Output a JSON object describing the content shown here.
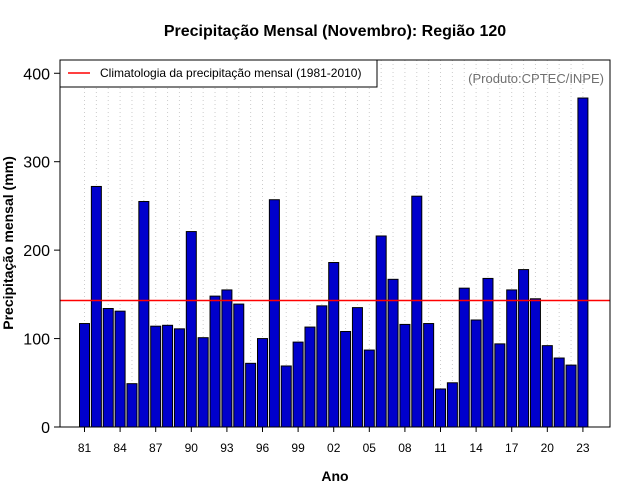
{
  "chart_data": {
    "type": "bar",
    "title": "Precipitação Mensal (Novembro): Região 120",
    "xlabel": "Ano",
    "ylabel": "Precipitação mensal (mm)",
    "ylim": [
      0,
      415
    ],
    "yticks": [
      0,
      100,
      200,
      300,
      400
    ],
    "xtick_labels": [
      "81",
      "84",
      "87",
      "90",
      "93",
      "96",
      "99",
      "02",
      "05",
      "08",
      "11",
      "14",
      "17",
      "20",
      "23"
    ],
    "categories": [
      "1981",
      "1982",
      "1983",
      "1984",
      "1985",
      "1986",
      "1987",
      "1988",
      "1989",
      "1990",
      "1991",
      "1992",
      "1993",
      "1994",
      "1995",
      "1996",
      "1997",
      "1998",
      "1999",
      "2000",
      "2001",
      "2002",
      "2003",
      "2004",
      "2005",
      "2006",
      "2007",
      "2008",
      "2009",
      "2010",
      "2011",
      "2012",
      "2013",
      "2014",
      "2015",
      "2016",
      "2017",
      "2018",
      "2019",
      "2020",
      "2021",
      "2022",
      "2023"
    ],
    "values": [
      117,
      272,
      134,
      131,
      49,
      255,
      114,
      115,
      111,
      221,
      101,
      148,
      155,
      139,
      72,
      100,
      257,
      69,
      96,
      113,
      137,
      186,
      108,
      135,
      87,
      216,
      167,
      116,
      261,
      117,
      43,
      50,
      157,
      121,
      168,
      94,
      155,
      178,
      145,
      92,
      78,
      70,
      372
    ],
    "climatology": 143,
    "legend": {
      "label": "Climatologia da precipitação mensal (1981-2010)",
      "position": "top-left"
    },
    "credit": "(Produto:CPTEC/INPE)",
    "bar_color": "#0000cc",
    "line_color": "#ff0000",
    "grid": "vertical-dotted"
  }
}
